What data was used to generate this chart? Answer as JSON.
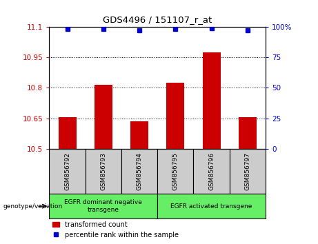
{
  "title": "GDS4496 / 151107_r_at",
  "categories": [
    "GSM856792",
    "GSM856793",
    "GSM856794",
    "GSM856795",
    "GSM856796",
    "GSM856797"
  ],
  "bar_values": [
    10.655,
    10.815,
    10.635,
    10.825,
    10.975,
    10.655
  ],
  "percentile_values": [
    98,
    98,
    97,
    98,
    99,
    97
  ],
  "ylim_left": [
    10.5,
    11.1
  ],
  "ylim_right": [
    0,
    100
  ],
  "yticks_left": [
    10.5,
    10.65,
    10.8,
    10.95,
    11.1
  ],
  "yticks_right": [
    0,
    25,
    50,
    75,
    100
  ],
  "ytick_labels_left": [
    "10.5",
    "10.65",
    "10.8",
    "10.95",
    "11.1"
  ],
  "ytick_labels_right": [
    "0",
    "25",
    "50",
    "75",
    "100%"
  ],
  "bar_color": "#cc0000",
  "dot_color": "#0000cc",
  "group1_label": "EGFR dominant negative\ntransgene",
  "group2_label": "EGFR activated transgene",
  "group1_indices": [
    0,
    1,
    2
  ],
  "group2_indices": [
    3,
    4,
    5
  ],
  "genotype_label": "genotype/variation",
  "legend_bar_label": "transformed count",
  "legend_dot_label": "percentile rank within the sample",
  "plot_bg_color": "#ffffff",
  "group_bg_color": "#66ee66",
  "sample_bg_color": "#cccccc",
  "bar_width": 0.5
}
